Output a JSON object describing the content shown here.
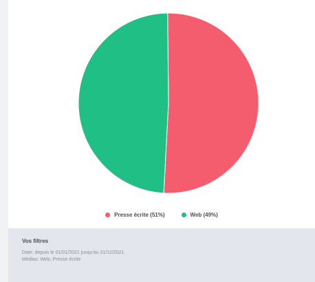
{
  "chart_data": {
    "type": "pie",
    "slices": [
      {
        "label": "Presse écrite (51%)",
        "value": 51,
        "color": "#f45d6e"
      },
      {
        "label": "Web (49%)",
        "value": 49,
        "color": "#1fbf86"
      }
    ],
    "legend_position": "bottom"
  },
  "filters": {
    "title": "Vos filtres",
    "line1": "Date: depuis le 01/01/2021 jusqu'au 31/12/2021",
    "line2": "Médias: Web, Presse écrite"
  }
}
